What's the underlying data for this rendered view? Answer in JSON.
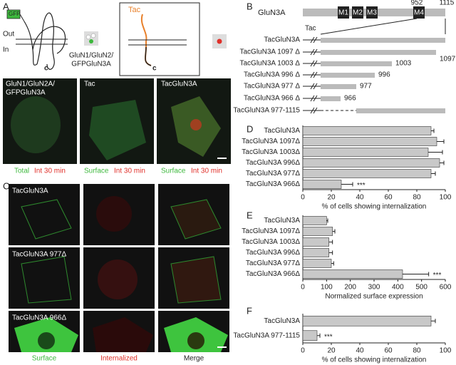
{
  "panel_labels": [
    "A",
    "B",
    "C",
    "D",
    "E",
    "F"
  ],
  "panel_a": {
    "gfp": "GFP",
    "out": "Out",
    "in": "In",
    "c_left": "c",
    "construct": [
      "GluN1/GluN2/",
      "GFPGluN3A"
    ],
    "tac": "Tac",
    "c_right": "c",
    "images": [
      {
        "title": [
          "GluN1/GluN2A/",
          "GFPGluN3A"
        ],
        "caption": [
          "Total",
          "Int 30 min"
        ]
      },
      {
        "title": [
          "Tac"
        ],
        "caption": [
          "Surface",
          "Int 30 min"
        ]
      },
      {
        "title": [
          "TacGluN3A"
        ],
        "caption": [
          "Surface",
          "Int 30 min"
        ]
      }
    ]
  },
  "panel_b": {
    "protein": "GluN3A",
    "domains": [
      "M1",
      "M2",
      "M3",
      "M4"
    ],
    "positions": [
      "952",
      "1115"
    ],
    "tac": "Tac",
    "constructs": [
      {
        "name": "TacGluN3A"
      },
      {
        "name": "TacGluN3A 1097 Δ",
        "end": "1097"
      },
      {
        "name": "TacGluN3A 1003 Δ",
        "end": "1003"
      },
      {
        "name": "TacGluN3A 996 Δ",
        "end": "996"
      },
      {
        "name": "TacGluN3A 977 Δ",
        "end": "977"
      },
      {
        "name": "TacGluN3A 966 Δ",
        "end": "966"
      },
      {
        "name": "TacGluN3A 977-1115"
      }
    ]
  },
  "panel_c": {
    "rows": [
      "TacGluN3A",
      "TacGluN3A 977Δ",
      "TacGluN3A 966Δ"
    ],
    "columns": [
      "Surface",
      "Internalized",
      "Merge"
    ]
  },
  "chart_data": [
    {
      "type": "bar",
      "orientation": "horizontal",
      "categories": [
        "TacGluN3A",
        "TacGluN3A 1097Δ",
        "TacGluN3A 1003Δ",
        "TacGluN3A 996Δ",
        "TacGluN3A 977Δ",
        "TacGluN3A 966Δ"
      ],
      "values": [
        90,
        94,
        88,
        96,
        90,
        27
      ],
      "errors": [
        2,
        5,
        10,
        3,
        3,
        8
      ],
      "significance": [
        null,
        null,
        null,
        null,
        null,
        "***"
      ],
      "color": "#c8c8c8",
      "xlim": [
        0,
        100
      ],
      "xticks": [
        0,
        20,
        40,
        60,
        80,
        100
      ],
      "xlabel": "% of cells showing internalization"
    },
    {
      "type": "bar",
      "orientation": "horizontal",
      "categories": [
        "TacGluN3A",
        "TacGluN3A 1097Δ",
        "TacGluN3A 1003Δ",
        "TacGluN3A 996Δ",
        "TacGluN3A 977Δ",
        "TacGluN3A 966Δ"
      ],
      "values": [
        100,
        125,
        110,
        110,
        120,
        420
      ],
      "errors": [
        5,
        10,
        15,
        15,
        10,
        110
      ],
      "significance": [
        null,
        null,
        null,
        null,
        null,
        "***"
      ],
      "color": "#c8c8c8",
      "xlim": [
        0,
        600
      ],
      "xticks": [
        0,
        100,
        200,
        300,
        400,
        500,
        600
      ],
      "xlabel": "Normalized surface expression"
    },
    {
      "type": "bar",
      "orientation": "horizontal",
      "categories": [
        "TacGluN3A",
        "TacGluN3A 977-1115"
      ],
      "values": [
        90,
        10
      ],
      "errors": [
        3,
        2
      ],
      "significance": [
        null,
        "***"
      ],
      "color": "#c8c8c8",
      "xlim": [
        0,
        100
      ],
      "xticks": [
        0,
        20,
        40,
        60,
        80,
        100
      ],
      "xlabel": "% of cells showing internalization"
    }
  ]
}
